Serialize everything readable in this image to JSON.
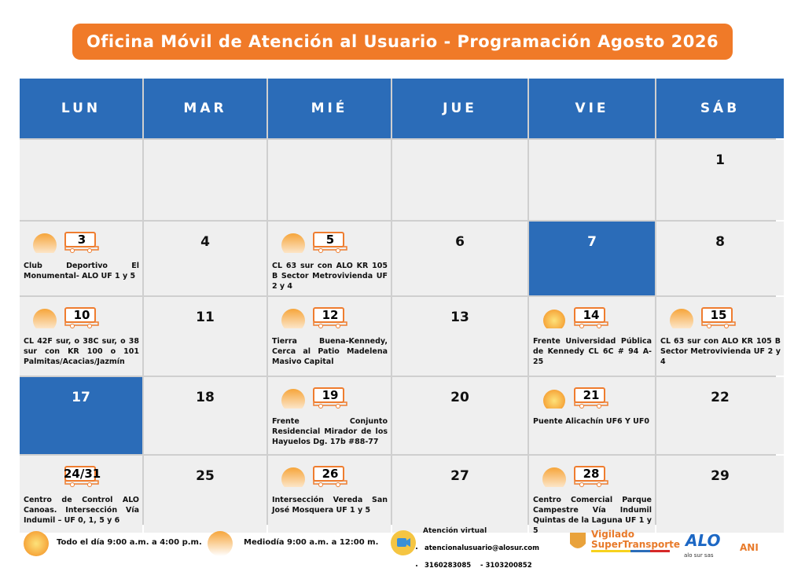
{
  "header": {
    "title": "Oficina Móvil de Atención al Usuario - Programación Agosto 2026"
  },
  "calendar": {
    "weekdays": [
      "LUN",
      "MAR",
      "MIÉ",
      "JUE",
      "VIE",
      "SÁB"
    ],
    "weeks": [
      [
        null,
        null,
        null,
        null,
        null,
        {
          "day": 1
        }
      ],
      [
        {
          "day": 3,
          "sun": "half",
          "bus": true,
          "text": "Club Deportivo El Monumental- ALO UF 1 y 5"
        },
        {
          "day": 4
        },
        {
          "day": 5,
          "sun": "half",
          "bus": true,
          "text": "CL 63 sur con ALO KR 105 B Sector Metrovivienda UF 2 y 4"
        },
        {
          "day": 6
        },
        {
          "day": 7,
          "holiday": true
        },
        {
          "day": 8
        }
      ],
      [
        {
          "day": 10,
          "sun": "half",
          "bus": true,
          "text": "CL 42F sur, o 38C sur, o 38 sur con KR 100 o 101 Palmitas/Acacias/Jazmín"
        },
        {
          "day": 11
        },
        {
          "day": 12,
          "sun": "half",
          "bus": true,
          "text": "Tierra Buena-Kennedy, Cerca al Patio Madelena Masivo Capital"
        },
        {
          "day": 13
        },
        {
          "day": 14,
          "sun": "full",
          "bus": true,
          "text": "Frente Universidad Pública de Kennedy CL 6C # 94 A-25"
        },
        {
          "day": 15,
          "sun": "half",
          "bus": true,
          "text": "CL 63 sur con ALO KR 105 B Sector Metrovivienda UF 2 y 4"
        }
      ],
      [
        {
          "day": 17,
          "holiday": true
        },
        {
          "day": 18
        },
        {
          "day": 19,
          "sun": "half",
          "bus": true,
          "text": "Frente Conjunto Residencial Mirador de los Hayuelos Dg. 17b #88-77"
        },
        {
          "day": 20
        },
        {
          "day": 21,
          "sun": "full",
          "bus": true,
          "text": "Puente Alicachín UF6 Y UF0"
        },
        {
          "day": 22
        }
      ],
      [
        {
          "day": "24/31",
          "bus": true,
          "text": "Centro de Control ALO Canoas. Intersección Vía Indumil – UF 0, 1, 5 y 6"
        },
        {
          "day": 25
        },
        {
          "day": 26,
          "sun": "half",
          "bus": true,
          "text": "Intersección Vereda San José Mosquera UF 1 y 5"
        },
        {
          "day": 27
        },
        {
          "day": 28,
          "sun": "half",
          "bus": true,
          "text": "Centro Comercial Parque Campestre Vía Indumil Quintas de la Laguna UF 1 y 5"
        },
        {
          "day": 29
        }
      ]
    ]
  },
  "footer": {
    "legend": [
      {
        "icon": "full",
        "label": "Todo el día  9:00 a.m. a 4:00 p.m."
      },
      {
        "icon": "half",
        "label": "Mediodía  9:00 a.m. a 12:00 m."
      }
    ],
    "virtual": {
      "title": "Atención virtual",
      "items": [
        "atencionalusuario@alosur.com",
        "3160283085    - 3103200852"
      ]
    },
    "logos": {
      "vigilado": "Vigilado",
      "supertransporte": "SuperTransporte",
      "alo": "alo sur sas",
      "ani": "ANI"
    }
  }
}
